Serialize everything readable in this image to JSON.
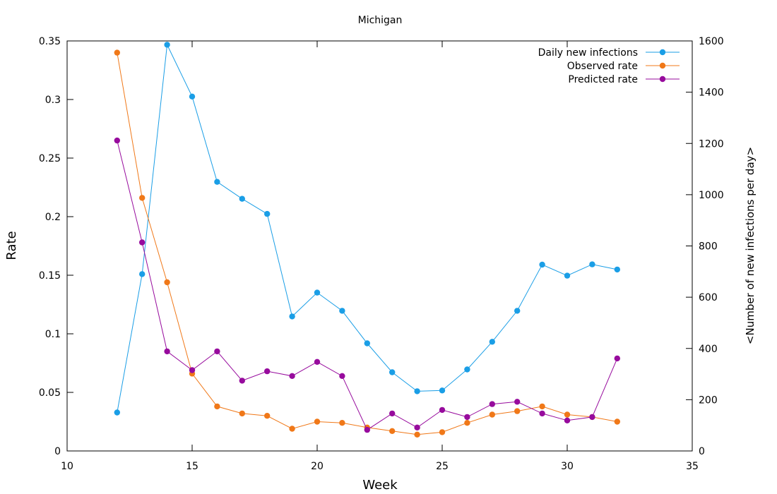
{
  "chart_data": {
    "type": "line",
    "title": "Michigan",
    "xlabel": "Week",
    "ylabel": "Rate",
    "y2label": "<Number of new infections per day>",
    "xlim": [
      10,
      35
    ],
    "ylim": [
      0,
      0.35
    ],
    "y2lim": [
      0,
      1600
    ],
    "x_ticks": [
      10,
      15,
      20,
      25,
      30,
      35
    ],
    "x_tick_labels": [
      "10",
      "15",
      "20",
      "25",
      "30",
      "35"
    ],
    "y_ticks": [
      0,
      0.05,
      0.1,
      0.15,
      0.2,
      0.25,
      0.3,
      0.35
    ],
    "y_tick_labels": [
      "0",
      "0.05",
      "0.1",
      "0.15",
      "0.2",
      "0.25",
      "0.3",
      "0.35"
    ],
    "y2_ticks": [
      0,
      200,
      400,
      600,
      800,
      1000,
      1200,
      1400,
      1600
    ],
    "y2_tick_labels": [
      "0",
      "200",
      "400",
      "600",
      "800",
      "1000",
      "1200",
      "1400",
      "1600"
    ],
    "grid": false,
    "legend_position": "top-right",
    "x": [
      12,
      13,
      14,
      15,
      16,
      17,
      18,
      19,
      20,
      21,
      22,
      23,
      24,
      25,
      26,
      27,
      28,
      29,
      30,
      31,
      32
    ],
    "series": [
      {
        "name": "Daily new infections",
        "axis": "y2",
        "color": "#1a9ee6",
        "values": [
          150,
          690,
          1585,
          1383,
          1050,
          984,
          925,
          525,
          618,
          547,
          420,
          307,
          233,
          236,
          318,
          426,
          547,
          727,
          684,
          728,
          708
        ]
      },
      {
        "name": "Observed rate",
        "axis": "y",
        "color": "#f07818",
        "values": [
          0.34,
          0.216,
          0.144,
          0.066,
          0.038,
          0.032,
          0.03,
          0.019,
          0.025,
          0.024,
          0.02,
          0.017,
          0.014,
          0.016,
          0.024,
          0.031,
          0.034,
          0.038,
          0.031,
          0.029,
          0.025
        ]
      },
      {
        "name": "Predicted rate",
        "axis": "y",
        "color": "#970b9d",
        "values": [
          0.265,
          0.178,
          0.085,
          0.069,
          0.085,
          0.06,
          0.068,
          0.064,
          0.076,
          0.064,
          0.018,
          0.032,
          0.02,
          0.035,
          0.029,
          0.04,
          0.042,
          0.032,
          0.026,
          0.029,
          0.079
        ]
      }
    ]
  }
}
